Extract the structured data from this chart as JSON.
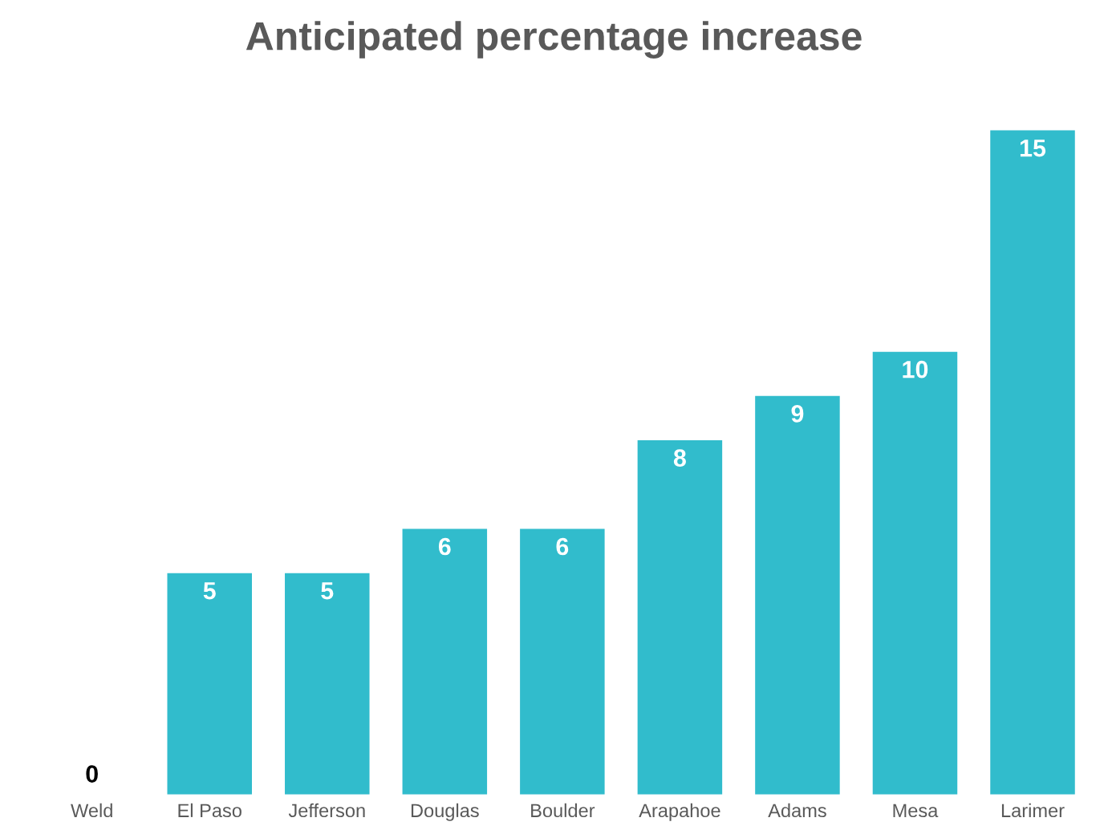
{
  "chart_data": {
    "type": "bar",
    "title": "Anticipated percentage increase",
    "categories": [
      "Weld",
      "El Paso",
      "Jefferson",
      "Douglas",
      "Boulder",
      "Arapahoe",
      "Adams",
      "Mesa",
      "Larimer"
    ],
    "values": [
      0,
      5,
      5,
      6,
      6,
      8,
      9,
      10,
      15
    ],
    "color": "#31bccc",
    "data_labels": true,
    "grid": false,
    "tick_labels": "x"
  }
}
